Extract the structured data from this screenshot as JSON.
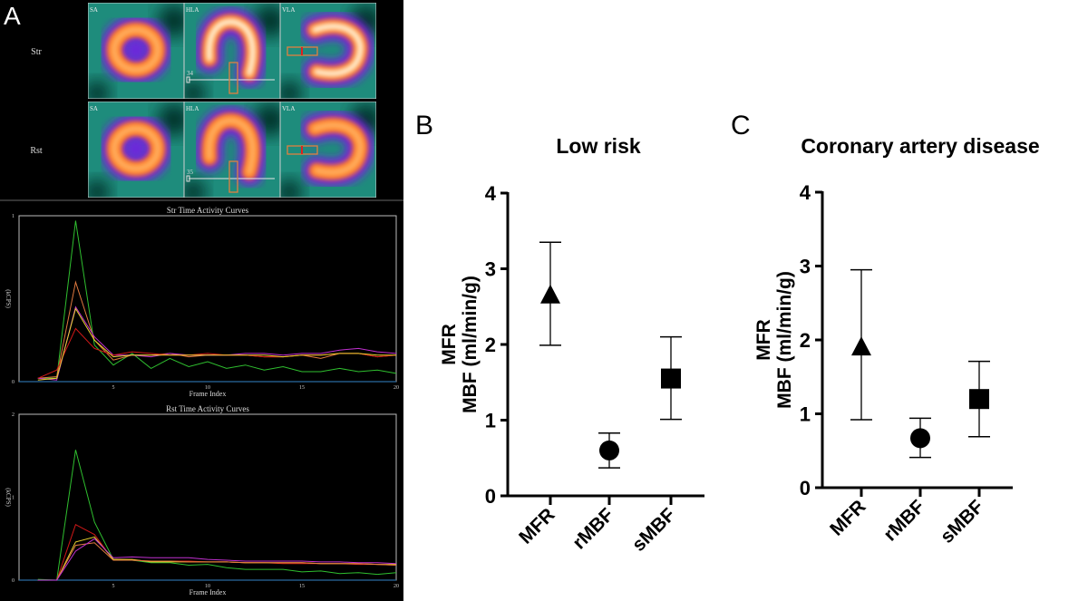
{
  "panel_a": {
    "label": "A",
    "rows": [
      {
        "label": "Str",
        "cells": [
          "SA",
          "HLA",
          "VLA"
        ],
        "slice_number": "34"
      },
      {
        "label": "Rst",
        "cells": [
          "SA",
          "HLA",
          "VLA"
        ],
        "slice_number": "35"
      }
    ],
    "colors": {
      "background": "#000000",
      "tissue": "#1e8c7c",
      "perfusion_low": "#7a1fe0",
      "perfusion_mid": "#ff8a20",
      "perfusion_high": "#ffffff"
    }
  },
  "chart_data": [
    {
      "type": "line",
      "title": "Str Time Activity Curves",
      "xlabel": "Frame Index",
      "ylabel": "(kCPS)",
      "xlim": [
        0,
        20
      ],
      "ylim": [
        0,
        1
      ],
      "xticks": [
        "5",
        "10",
        "15",
        "20"
      ],
      "yticks": [
        "0",
        "1"
      ],
      "x": [
        1,
        2,
        3,
        4,
        5,
        6,
        7,
        8,
        9,
        10,
        11,
        12,
        13,
        14,
        15,
        16,
        17,
        18,
        19,
        20
      ],
      "series": [
        {
          "color": "#2fbf2f",
          "values": [
            0.02,
            0.02,
            0.97,
            0.22,
            0.1,
            0.17,
            0.08,
            0.14,
            0.09,
            0.12,
            0.08,
            0.1,
            0.07,
            0.09,
            0.06,
            0.06,
            0.08,
            0.06,
            0.07,
            0.05
          ]
        },
        {
          "color": "#e07a40",
          "values": [
            0.02,
            0.03,
            0.6,
            0.25,
            0.13,
            0.16,
            0.16,
            0.17,
            0.15,
            0.16,
            0.16,
            0.16,
            0.15,
            0.15,
            0.16,
            0.14,
            0.17,
            0.17,
            0.15,
            0.16
          ]
        },
        {
          "color": "#c030d0",
          "values": [
            0.02,
            0.01,
            0.45,
            0.27,
            0.16,
            0.16,
            0.15,
            0.17,
            0.16,
            0.16,
            0.16,
            0.17,
            0.17,
            0.16,
            0.17,
            0.17,
            0.19,
            0.2,
            0.18,
            0.17
          ]
        },
        {
          "color": "#d01818",
          "values": [
            0.02,
            0.07,
            0.32,
            0.2,
            0.16,
            0.18,
            0.17,
            0.16,
            0.16,
            0.17,
            0.16,
            0.16,
            0.15,
            0.15,
            0.16,
            0.16,
            0.17,
            0.17,
            0.15,
            0.16
          ]
        },
        {
          "color": "#e8d030",
          "values": [
            0.01,
            0.02,
            0.44,
            0.25,
            0.15,
            0.16,
            0.16,
            0.16,
            0.16,
            0.16,
            0.16,
            0.16,
            0.16,
            0.15,
            0.16,
            0.16,
            0.17,
            0.17,
            0.16,
            0.16
          ]
        }
      ]
    },
    {
      "type": "line",
      "title": "Rst Time Activity Curves",
      "xlabel": "Frame Index",
      "ylabel": "(kCPS)",
      "xlim": [
        0,
        20
      ],
      "ylim": [
        0,
        2
      ],
      "xticks": [
        "5",
        "10",
        "15",
        "20"
      ],
      "yticks": [
        "0",
        "1",
        "2"
      ],
      "x": [
        1,
        2,
        3,
        4,
        5,
        6,
        7,
        8,
        9,
        10,
        11,
        12,
        13,
        14,
        15,
        16,
        17,
        18,
        19,
        20
      ],
      "series": [
        {
          "color": "#2fbf2f",
          "values": [
            0.01,
            0.0,
            1.57,
            0.7,
            0.25,
            0.24,
            0.21,
            0.21,
            0.18,
            0.19,
            0.15,
            0.13,
            0.13,
            0.13,
            0.1,
            0.11,
            0.08,
            0.09,
            0.07,
            0.09
          ]
        },
        {
          "color": "#d01818",
          "values": [
            0.0,
            0.0,
            0.67,
            0.55,
            0.24,
            0.24,
            0.23,
            0.23,
            0.23,
            0.22,
            0.22,
            0.21,
            0.21,
            0.2,
            0.2,
            0.2,
            0.2,
            0.19,
            0.19,
            0.18
          ]
        },
        {
          "color": "#e8d030",
          "values": [
            0.0,
            0.0,
            0.46,
            0.52,
            0.25,
            0.25,
            0.22,
            0.22,
            0.22,
            0.22,
            0.22,
            0.21,
            0.21,
            0.21,
            0.21,
            0.2,
            0.2,
            0.2,
            0.19,
            0.19
          ]
        },
        {
          "color": "#e07a40",
          "values": [
            0.0,
            0.0,
            0.42,
            0.45,
            0.24,
            0.24,
            0.23,
            0.23,
            0.22,
            0.22,
            0.22,
            0.21,
            0.21,
            0.21,
            0.21,
            0.2,
            0.2,
            0.2,
            0.19,
            0.18
          ]
        },
        {
          "color": "#c030d0",
          "values": [
            0.0,
            0.0,
            0.35,
            0.5,
            0.27,
            0.28,
            0.27,
            0.27,
            0.27,
            0.25,
            0.24,
            0.23,
            0.23,
            0.23,
            0.23,
            0.22,
            0.22,
            0.21,
            0.21,
            0.2
          ]
        }
      ]
    },
    {
      "type": "scatter",
      "panel_label": "B",
      "title": "Low risk",
      "ylabel_lines": [
        "MFR",
        "MBF (ml/min/g)"
      ],
      "ylim": [
        0,
        4
      ],
      "yticks": [
        "0",
        "1",
        "2",
        "3",
        "4"
      ],
      "categories": [
        "MFR",
        "rMBF",
        "sMBF"
      ],
      "markers": [
        "triangle",
        "circle",
        "square"
      ],
      "values": [
        2.65,
        0.6,
        1.55
      ],
      "error_low": [
        1.99,
        0.37,
        1.01
      ],
      "error_high": [
        3.35,
        0.83,
        2.1
      ]
    },
    {
      "type": "scatter",
      "panel_label": "C",
      "title": "Coronary artery disease",
      "ylabel_lines": [
        "MFR",
        "MBF (ml/min/g)"
      ],
      "ylim": [
        0,
        4
      ],
      "yticks": [
        "0",
        "1",
        "2",
        "3",
        "4"
      ],
      "categories": [
        "MFR",
        "rMBF",
        "sMBF"
      ],
      "markers": [
        "triangle",
        "circle",
        "square"
      ],
      "values": [
        1.9,
        0.67,
        1.2
      ],
      "error_low": [
        0.92,
        0.41,
        0.69
      ],
      "error_high": [
        2.95,
        0.94,
        1.71
      ]
    }
  ]
}
